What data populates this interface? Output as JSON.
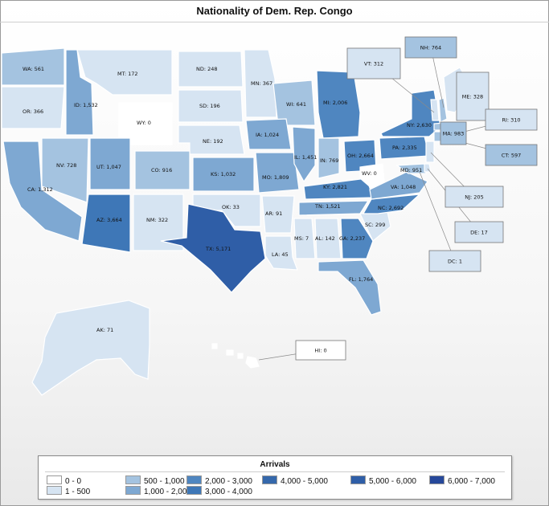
{
  "title": "Nationality of Dem. Rep. Congo",
  "legend": {
    "title": "Arrivals",
    "items": [
      {
        "label": "0 - 0",
        "color": "#ffffff"
      },
      {
        "label": "1 - 500",
        "color": "#d6e4f2"
      },
      {
        "label": "500 - 1,000",
        "color": "#a4c3e0"
      },
      {
        "label": "1,000 - 2,000",
        "color": "#7ea8d2"
      },
      {
        "label": "2,000 - 3,000",
        "color": "#4f86c0"
      },
      {
        "label": "3,000 - 4,000",
        "color": "#3e77b7"
      },
      {
        "label": "4,000 - 5,000",
        "color": "#3568ab"
      },
      {
        "label": "5,000 - 6,000",
        "color": "#2f5ea7"
      },
      {
        "label": "6,000 - 7,000",
        "color": "#26489a"
      }
    ]
  },
  "states": {
    "WA": "WA: 561",
    "OR": "OR: 366",
    "ID": "ID: 1,532",
    "MT": "MT: 172",
    "WY": "WY: 0",
    "ND": "ND: 248",
    "SD": "SD: 196",
    "NE": "NE: 192",
    "MN": "MN: 367",
    "WI": "WI: 641",
    "MI": "MI: 2,006",
    "NV": "NV: 728",
    "CA": "CA: 1,312",
    "UT": "UT: 1,047",
    "CO": "CO: 916",
    "AZ": "AZ: 3,664",
    "NM": "NM: 322",
    "KS": "KS: 1,032",
    "OK": "OK: 33",
    "TX": "TX: 5,171",
    "IA": "IA: 1,024",
    "MO": "MO: 1,809",
    "AR": "AR: 91",
    "LA": "LA: 45",
    "IL": "IL: 1,451",
    "IN": "IN: 769",
    "OH": "OH: 2,664",
    "KY": "KY: 2,821",
    "TN": "TN: 1,521",
    "MS": "MS: 7",
    "AL": "AL: 142",
    "GA": "GA: 2,237",
    "FL": "FL: 1,764",
    "SC": "SC: 299",
    "NC": "NC: 2,692",
    "VA": "VA: 1,048",
    "WV": "WV: 0",
    "MD": "MD: 951",
    "PA": "PA: 2,335",
    "NY": "NY: 2,630",
    "AK": "AK: 71",
    "HI": "HI: 0"
  },
  "callouts": {
    "VT": "VT: 312",
    "NH": "NH: 764",
    "ME": "ME: 328",
    "MA": "MA: 983",
    "RI": "RI: 310",
    "CT": "CT: 597",
    "NJ": "NJ: 205",
    "DE": "DE: 17",
    "DC": "DC: 1",
    "HI": "HI: 0"
  }
}
